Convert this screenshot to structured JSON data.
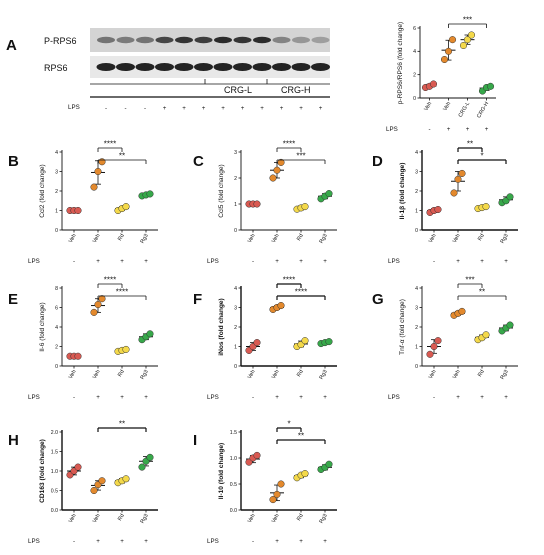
{
  "colors": {
    "red": "#d95a52",
    "orange": "#e3892d",
    "yellow": "#f4d94a",
    "green": "#37a84a",
    "axis": "#111111"
  },
  "blot": {
    "panel": "A",
    "bands": [
      "P-RPS6",
      "RPS6"
    ],
    "lps_label": "LPS",
    "lps_signs": [
      "-",
      "-",
      "-",
      "+",
      "+",
      "+",
      "+",
      "+",
      "+",
      "+",
      "+",
      "+"
    ],
    "groups": [
      "CRG-L",
      "CRG-H"
    ]
  },
  "lps_label": "LPS",
  "chart_data": [
    {
      "id": "A",
      "type": "scatter",
      "panel_label": "",
      "ylabel": "p-RPS6/RPS6 (fold change)",
      "ylim": [
        0,
        6
      ],
      "yticks": [
        "0",
        "2",
        "4",
        "6"
      ],
      "categories": [
        "Veh",
        "Veh",
        "CRG-L",
        "CRG-H"
      ],
      "lps": [
        "-",
        "+",
        "+",
        "+"
      ],
      "bold_axis": false,
      "series": [
        {
          "color": "red",
          "points": [
            0.9,
            1.0,
            1.2
          ],
          "mean": 1.03,
          "sd": 0.15
        },
        {
          "color": "orange",
          "points": [
            3.3,
            4.0,
            5.0
          ],
          "mean": 4.1,
          "sd": 0.85
        },
        {
          "color": "yellow",
          "points": [
            4.5,
            5.0,
            5.4
          ],
          "mean": 5.0,
          "sd": 0.4
        },
        {
          "color": "green",
          "points": [
            0.6,
            0.9,
            1.0
          ],
          "mean": 0.85,
          "sd": 0.2
        }
      ],
      "brackets": [
        {
          "from": 1,
          "to": 3,
          "label": "***"
        }
      ]
    },
    {
      "id": "B",
      "type": "scatter",
      "panel_label": "B",
      "ylabel": "Ccl2 (fold change)",
      "ylim": [
        0,
        4
      ],
      "yticks": [
        "0",
        "1",
        "2",
        "3",
        "4"
      ],
      "categories": [
        "Veh",
        "Veh",
        "Rd",
        "Rg3"
      ],
      "lps": [
        "-",
        "+",
        "+",
        "+"
      ],
      "bold_axis": false,
      "series": [
        {
          "color": "red",
          "points": [
            1.0,
            1.0,
            1.0
          ],
          "mean": 1.0,
          "sd": 0.03
        },
        {
          "color": "orange",
          "points": [
            2.2,
            3.0,
            3.5
          ],
          "mean": 2.95,
          "sd": 0.6
        },
        {
          "color": "yellow",
          "points": [
            1.0,
            1.1,
            1.2
          ],
          "mean": 1.1,
          "sd": 0.1
        },
        {
          "color": "green",
          "points": [
            1.75,
            1.8,
            1.85
          ],
          "mean": 1.8,
          "sd": 0.05
        }
      ],
      "brackets": [
        {
          "from": 1,
          "to": 2,
          "label": "****"
        },
        {
          "from": 1,
          "to": 3,
          "label": "**"
        }
      ]
    },
    {
      "id": "C",
      "type": "scatter",
      "panel_label": "C",
      "ylabel": "Ccl5 (fold change)",
      "ylim": [
        0,
        3
      ],
      "yticks": [
        "0",
        "1",
        "2",
        "3"
      ],
      "categories": [
        "Veh",
        "Veh",
        "Rd",
        "Rg3"
      ],
      "lps": [
        "-",
        "+",
        "+",
        "+"
      ],
      "bold_axis": false,
      "series": [
        {
          "color": "red",
          "points": [
            1.0,
            1.0,
            1.0
          ],
          "mean": 1.0,
          "sd": 0.03
        },
        {
          "color": "orange",
          "points": [
            2.0,
            2.3,
            2.6
          ],
          "mean": 2.3,
          "sd": 0.3
        },
        {
          "color": "yellow",
          "points": [
            0.8,
            0.85,
            0.9
          ],
          "mean": 0.85,
          "sd": 0.08
        },
        {
          "color": "green",
          "points": [
            1.2,
            1.3,
            1.4
          ],
          "mean": 1.3,
          "sd": 0.1
        }
      ],
      "brackets": [
        {
          "from": 1,
          "to": 2,
          "label": "****"
        },
        {
          "from": 1,
          "to": 3,
          "label": "***"
        }
      ]
    },
    {
      "id": "D",
      "type": "scatter",
      "panel_label": "D",
      "ylabel": "Il-1β (fold change)",
      "ylim": [
        0,
        4
      ],
      "yticks": [
        "0",
        "1",
        "2",
        "3",
        "4"
      ],
      "categories": [
        "Veh",
        "Veh",
        "Rd",
        "Rg3"
      ],
      "lps": [
        "-",
        "+",
        "+",
        "+"
      ],
      "bold_axis": true,
      "series": [
        {
          "color": "red",
          "points": [
            0.9,
            1.0,
            1.05
          ],
          "mean": 1.0,
          "sd": 0.1
        },
        {
          "color": "orange",
          "points": [
            1.9,
            2.6,
            2.9
          ],
          "mean": 2.5,
          "sd": 0.5
        },
        {
          "color": "yellow",
          "points": [
            1.1,
            1.15,
            1.2
          ],
          "mean": 1.15,
          "sd": 0.05
        },
        {
          "color": "green",
          "points": [
            1.4,
            1.5,
            1.7
          ],
          "mean": 1.55,
          "sd": 0.15
        }
      ],
      "brackets": [
        {
          "from": 1,
          "to": 2,
          "label": "**"
        },
        {
          "from": 1,
          "to": 3,
          "label": "*"
        }
      ]
    },
    {
      "id": "E",
      "type": "scatter",
      "panel_label": "E",
      "ylabel": "Il-6 (fold change)",
      "ylim": [
        0,
        8
      ],
      "yticks": [
        "0",
        "2",
        "4",
        "6",
        "8"
      ],
      "categories": [
        "Veh",
        "Veh",
        "Rd",
        "Rg3"
      ],
      "lps": [
        "-",
        "+",
        "+",
        "+"
      ],
      "bold_axis": false,
      "series": [
        {
          "color": "red",
          "points": [
            1.0,
            1.0,
            1.0
          ],
          "mean": 1.0,
          "sd": 0.03
        },
        {
          "color": "orange",
          "points": [
            5.5,
            6.3,
            6.9
          ],
          "mean": 6.2,
          "sd": 0.7
        },
        {
          "color": "yellow",
          "points": [
            1.5,
            1.6,
            1.7
          ],
          "mean": 1.6,
          "sd": 0.1
        },
        {
          "color": "green",
          "points": [
            2.7,
            3.0,
            3.3
          ],
          "mean": 3.0,
          "sd": 0.3
        }
      ],
      "brackets": [
        {
          "from": 1,
          "to": 2,
          "label": "****"
        },
        {
          "from": 1,
          "to": 3,
          "label": "****"
        }
      ]
    },
    {
      "id": "F",
      "type": "scatter",
      "panel_label": "F",
      "ylabel": "iNos (fold change)",
      "ylim": [
        0,
        4
      ],
      "yticks": [
        "0",
        "1",
        "2",
        "3",
        "4"
      ],
      "categories": [
        "Veh",
        "Veh",
        "Rd",
        "Rg3"
      ],
      "lps": [
        "-",
        "+",
        "+",
        "+"
      ],
      "bold_axis": true,
      "series": [
        {
          "color": "red",
          "points": [
            0.8,
            1.0,
            1.2
          ],
          "mean": 1.0,
          "sd": 0.2
        },
        {
          "color": "orange",
          "points": [
            2.9,
            3.0,
            3.1
          ],
          "mean": 3.0,
          "sd": 0.1
        },
        {
          "color": "yellow",
          "points": [
            1.0,
            1.1,
            1.3
          ],
          "mean": 1.13,
          "sd": 0.15
        },
        {
          "color": "green",
          "points": [
            1.15,
            1.2,
            1.25
          ],
          "mean": 1.2,
          "sd": 0.05
        }
      ],
      "brackets": [
        {
          "from": 1,
          "to": 2,
          "label": "****"
        },
        {
          "from": 1,
          "to": 3,
          "label": "****"
        }
      ]
    },
    {
      "id": "G",
      "type": "scatter",
      "panel_label": "G",
      "ylabel": "Tnf-α (fold change)",
      "ylim": [
        0,
        4
      ],
      "yticks": [
        "0",
        "1",
        "2",
        "3",
        "4"
      ],
      "categories": [
        "Veh",
        "Veh",
        "Rd",
        "Rg3"
      ],
      "lps": [
        "-",
        "+",
        "+",
        "+"
      ],
      "bold_axis": false,
      "series": [
        {
          "color": "red",
          "points": [
            0.6,
            1.0,
            1.3
          ],
          "mean": 1.0,
          "sd": 0.35
        },
        {
          "color": "orange",
          "points": [
            2.6,
            2.7,
            2.8
          ],
          "mean": 2.7,
          "sd": 0.1
        },
        {
          "color": "yellow",
          "points": [
            1.35,
            1.45,
            1.6
          ],
          "mean": 1.47,
          "sd": 0.12
        },
        {
          "color": "green",
          "points": [
            1.8,
            1.95,
            2.1
          ],
          "mean": 1.95,
          "sd": 0.15
        }
      ],
      "brackets": [
        {
          "from": 1,
          "to": 2,
          "label": "***"
        },
        {
          "from": 1,
          "to": 3,
          "label": "**"
        }
      ]
    },
    {
      "id": "H",
      "type": "scatter",
      "panel_label": "H",
      "ylabel": "CD163 (fold change)",
      "ylim": [
        0,
        2
      ],
      "yticks": [
        "0.0",
        "0.5",
        "1.0",
        "1.5",
        "2.0"
      ],
      "categories": [
        "Veh",
        "Veh",
        "Rd",
        "Rg3"
      ],
      "lps": [
        "-",
        "+",
        "+",
        "+"
      ],
      "bold_axis": true,
      "series": [
        {
          "color": "red",
          "points": [
            0.9,
            1.0,
            1.1
          ],
          "mean": 1.0,
          "sd": 0.1
        },
        {
          "color": "orange",
          "points": [
            0.5,
            0.65,
            0.75
          ],
          "mean": 0.63,
          "sd": 0.12
        },
        {
          "color": "yellow",
          "points": [
            0.7,
            0.75,
            0.8
          ],
          "mean": 0.75,
          "sd": 0.06
        },
        {
          "color": "green",
          "points": [
            1.1,
            1.25,
            1.35
          ],
          "mean": 1.25,
          "sd": 0.12
        }
      ],
      "brackets": [
        {
          "from": 1,
          "to": 3,
          "label": "**"
        }
      ]
    },
    {
      "id": "I",
      "type": "scatter",
      "panel_label": "I",
      "ylabel": "Il-10 (fold change)",
      "ylim": [
        0,
        1.5
      ],
      "yticks": [
        "0.0",
        "0.5",
        "1.0",
        "1.5"
      ],
      "categories": [
        "Veh",
        "Veh",
        "Rd",
        "Rg3"
      ],
      "lps": [
        "-",
        "+",
        "+",
        "+"
      ],
      "bold_axis": true,
      "series": [
        {
          "color": "red",
          "points": [
            0.92,
            1.0,
            1.05
          ],
          "mean": 0.98,
          "sd": 0.07
        },
        {
          "color": "orange",
          "points": [
            0.2,
            0.3,
            0.5
          ],
          "mean": 0.33,
          "sd": 0.15
        },
        {
          "color": "yellow",
          "points": [
            0.62,
            0.67,
            0.7
          ],
          "mean": 0.66,
          "sd": 0.04
        },
        {
          "color": "green",
          "points": [
            0.78,
            0.82,
            0.88
          ],
          "mean": 0.82,
          "sd": 0.05
        }
      ],
      "brackets": [
        {
          "from": 1,
          "to": 2,
          "label": "*"
        },
        {
          "from": 1,
          "to": 3,
          "label": "**"
        }
      ]
    }
  ]
}
